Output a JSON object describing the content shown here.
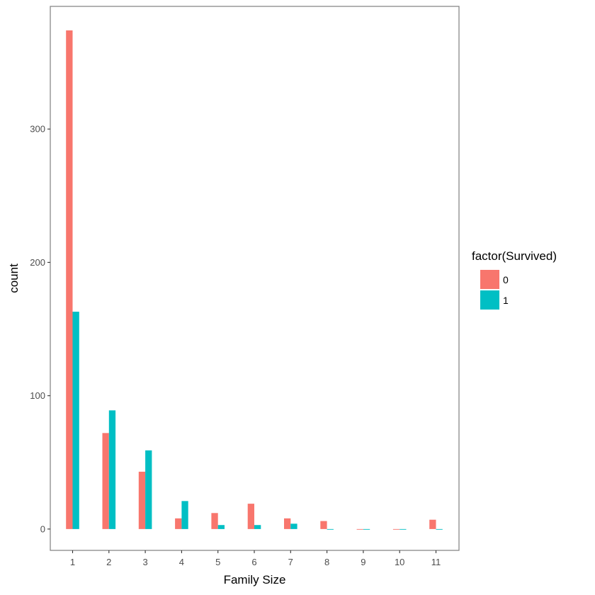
{
  "chart_data": {
    "type": "bar",
    "xlabel": "Family Size",
    "ylabel": "count",
    "categories": [
      "1",
      "2",
      "3",
      "4",
      "5",
      "6",
      "7",
      "8",
      "9",
      "10",
      "11"
    ],
    "series": [
      {
        "name": "0",
        "color": "#F8766D",
        "values": [
          374,
          72,
          43,
          8,
          12,
          19,
          8,
          6,
          0,
          0,
          7
        ]
      },
      {
        "name": "1",
        "color": "#00BFC4",
        "values": [
          163,
          89,
          59,
          21,
          3,
          3,
          4,
          0,
          0,
          0,
          0
        ]
      }
    ],
    "ylim": [
      -16,
      392
    ],
    "yticks": [
      0,
      100,
      200,
      300
    ],
    "legend": {
      "title": "factor(Survived)",
      "position": "right"
    },
    "grid": false
  }
}
